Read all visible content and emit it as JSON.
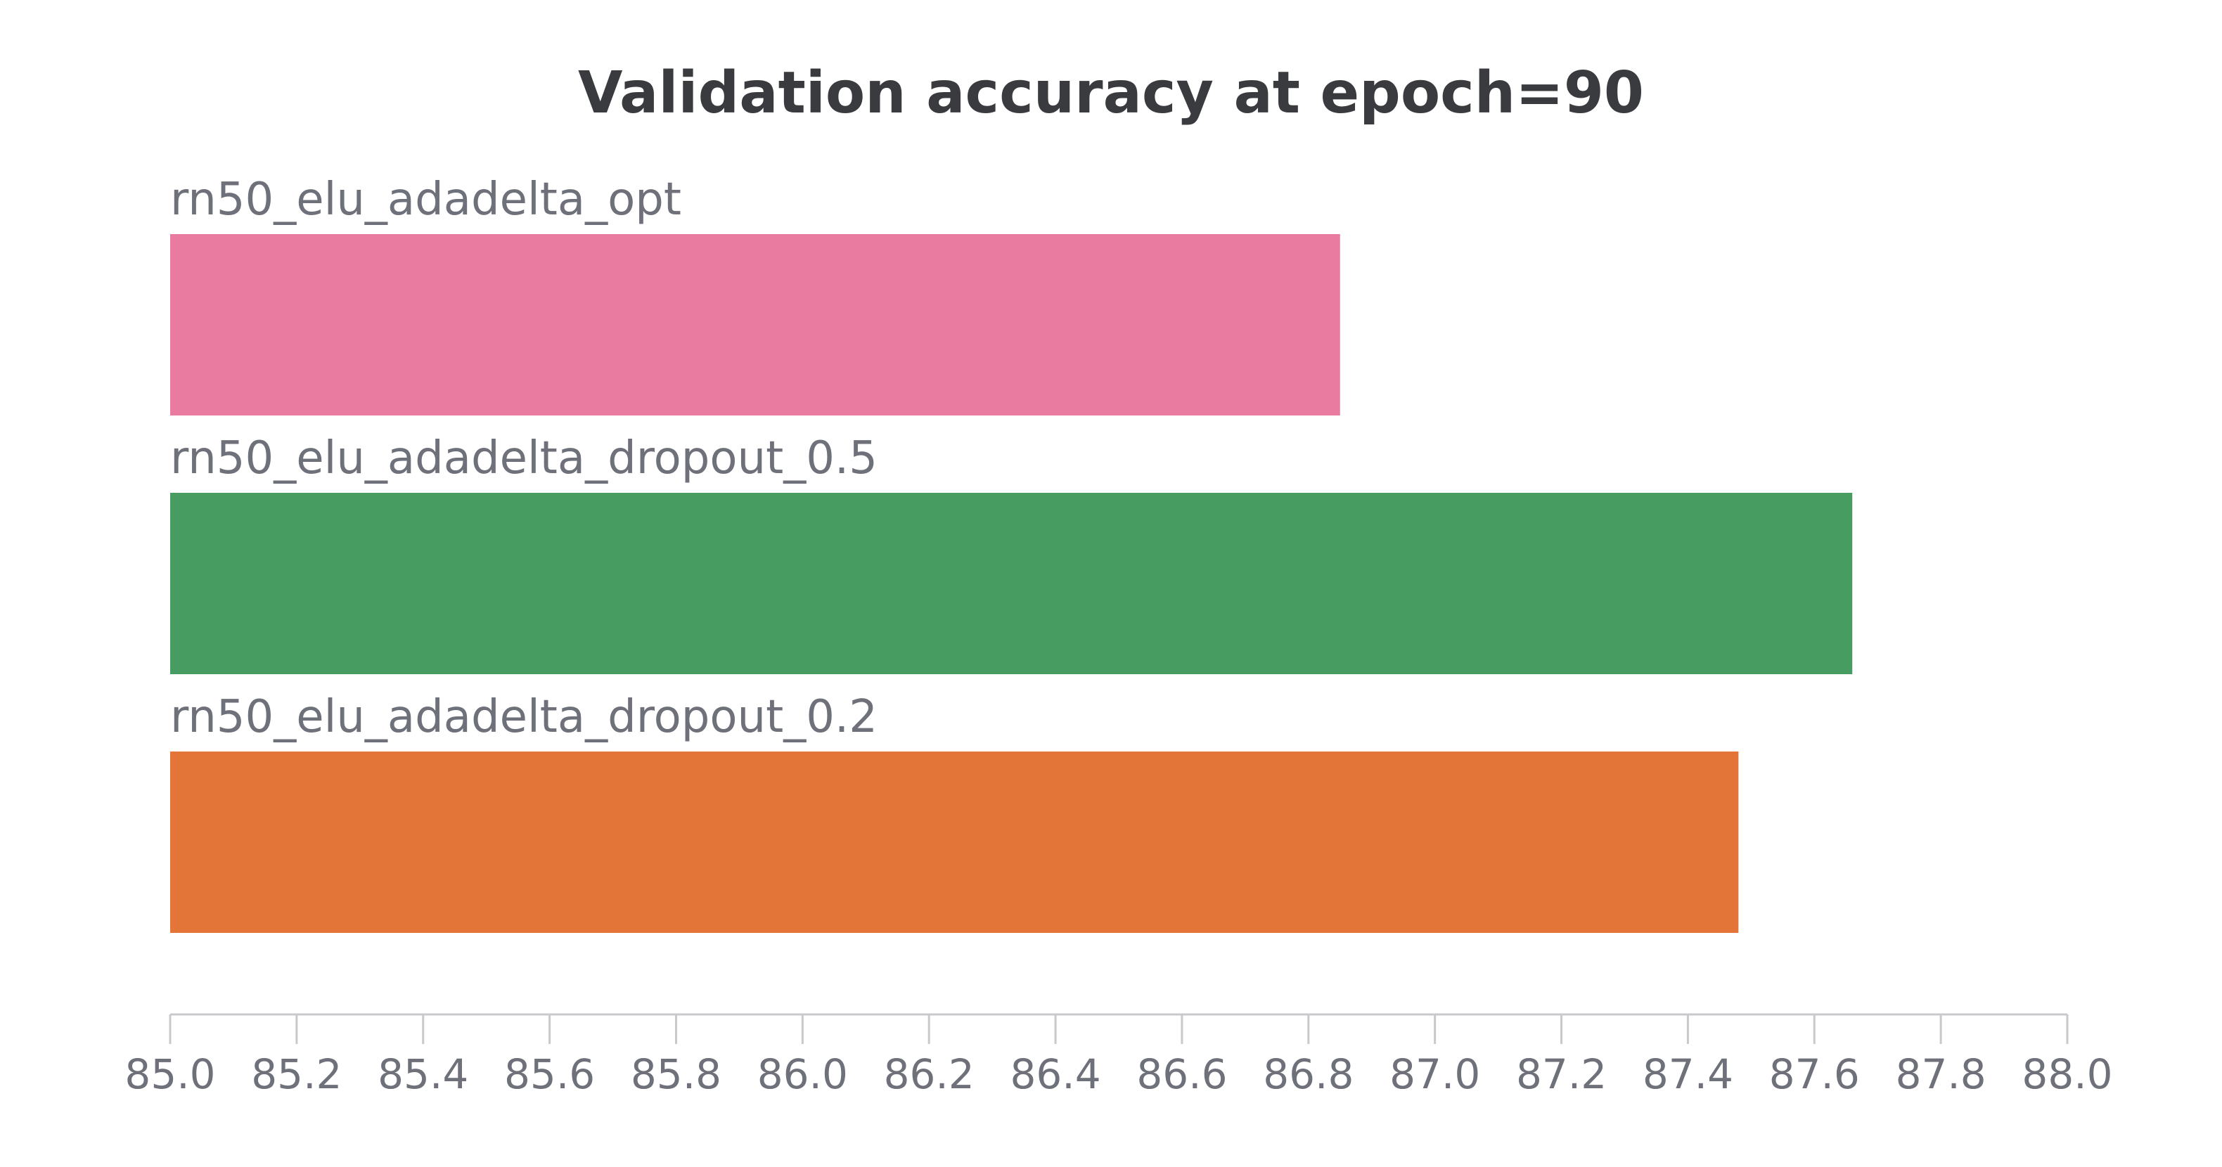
{
  "chart_data": {
    "type": "bar",
    "orientation": "horizontal",
    "title": "Validation accuracy at epoch=90",
    "xlabel": "",
    "ylabel": "",
    "xlim": [
      85.0,
      88.0
    ],
    "ticks": [
      "85.0",
      "85.2",
      "85.4",
      "85.6",
      "85.8",
      "86.0",
      "86.2",
      "86.4",
      "86.6",
      "86.8",
      "87.0",
      "87.2",
      "87.4",
      "87.6",
      "87.8",
      "88.0"
    ],
    "categories": [
      "rn50_elu_adadelta_opt",
      "rn50_elu_adadelta_dropout_0.5",
      "rn50_elu_adadelta_dropout_0.2"
    ],
    "values": [
      86.85,
      87.66,
      87.48
    ],
    "colors": [
      "#e97aa0",
      "#479c62",
      "#e47539"
    ],
    "grid": false,
    "legend": "none"
  }
}
